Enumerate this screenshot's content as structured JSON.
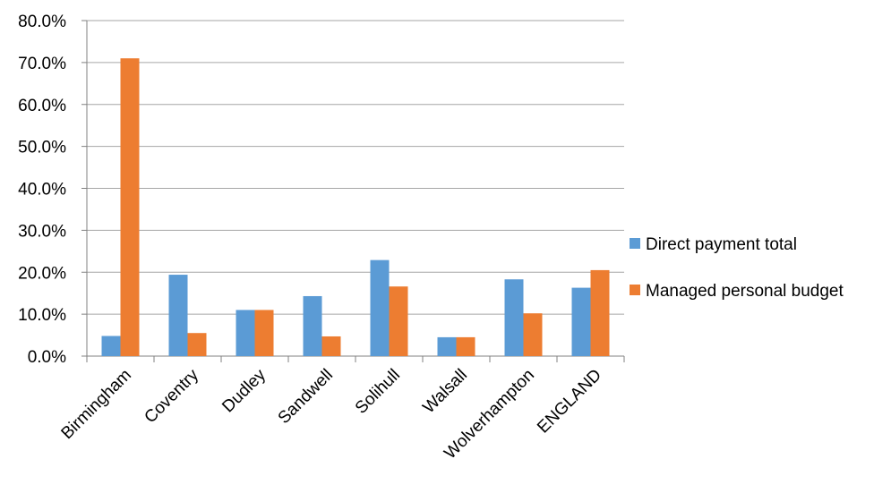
{
  "chart_data": {
    "type": "bar",
    "categories": [
      "Birmingham",
      "Coventry",
      "Dudley",
      "Sandwell",
      "Solihull",
      "Walsall",
      "Wolverhampton",
      "ENGLAND"
    ],
    "series": [
      {
        "name": "Direct payment total",
        "color": "#5B9BD5",
        "values": [
          4.8,
          19.4,
          11.0,
          14.3,
          22.9,
          4.5,
          18.3,
          16.3
        ]
      },
      {
        "name": "Managed personal budget",
        "color": "#ED7D31",
        "values": [
          71.0,
          5.5,
          11.0,
          4.7,
          16.6,
          4.5,
          10.2,
          20.5
        ]
      }
    ],
    "yticks": [
      "0.0%",
      "10.0%",
      "20.0%",
      "30.0%",
      "40.0%",
      "50.0%",
      "60.0%",
      "70.0%",
      "80.0%"
    ],
    "ylim": [
      0,
      80
    ],
    "title": "",
    "xlabel": "",
    "ylabel": "",
    "grid": true,
    "legend_position": "right"
  }
}
